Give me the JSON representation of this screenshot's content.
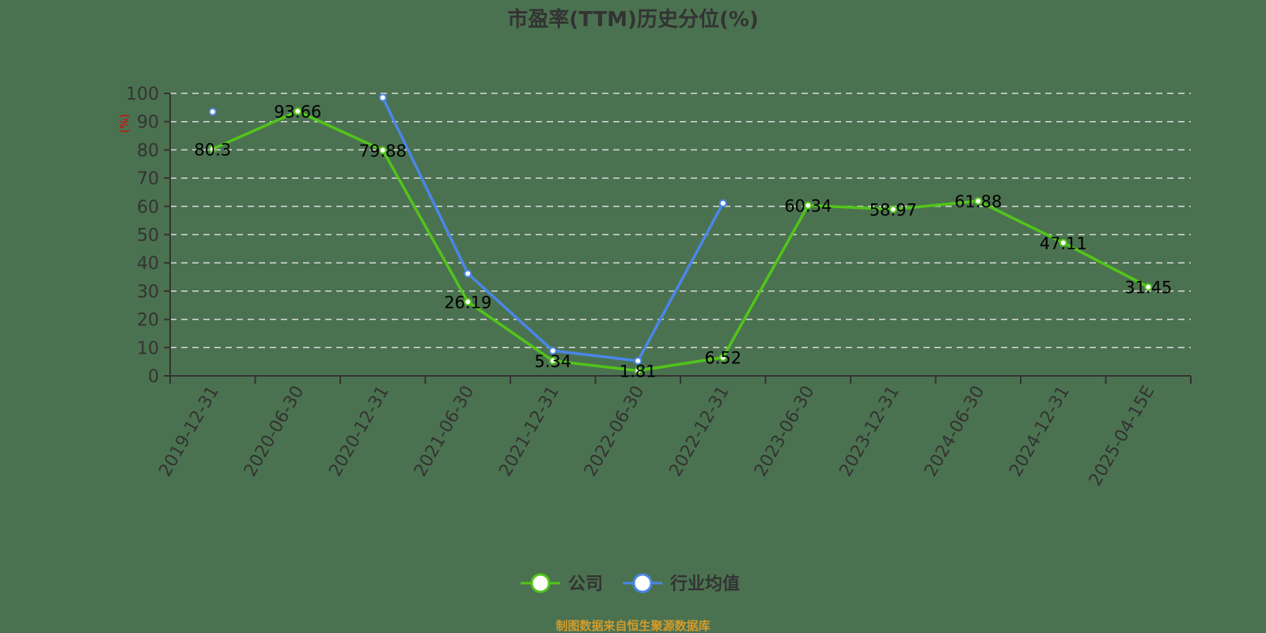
{
  "chart_data": {
    "type": "line",
    "title": "市盈率(TTM)历史分位(%)",
    "xlabel": "",
    "ylabel": "(%)",
    "ylim": [
      0,
      100
    ],
    "yticks": [
      0,
      10,
      20,
      30,
      40,
      50,
      60,
      70,
      80,
      90,
      100
    ],
    "grid": true,
    "legend_position": "bottom",
    "categories": [
      "2019-12-31",
      "2020-06-30",
      "2020-12-31",
      "2021-06-30",
      "2021-12-31",
      "2022-06-30",
      "2022-12-31",
      "2023-06-30",
      "2023-12-31",
      "2024-06-30",
      "2024-12-31",
      "2025-04-15E"
    ],
    "series": [
      {
        "name": "公司",
        "color": "#52c41a",
        "labeled": true,
        "values": [
          80.3,
          93.66,
          79.88,
          26.19,
          5.34,
          1.81,
          6.52,
          60.34,
          58.97,
          61.88,
          47.11,
          31.45
        ],
        "labels": [
          "80.3",
          "93.66",
          "79.88",
          "26.19",
          "5.34",
          "1.81",
          "6.52",
          "60.34",
          "58.97",
          "61.88",
          "47.11",
          "31.45"
        ]
      },
      {
        "name": "行业均值",
        "color": "#4a86e8",
        "labeled": false,
        "values": [
          93.5,
          null,
          98.5,
          36.2,
          8.9,
          5.3,
          61.1,
          null,
          null,
          null,
          null,
          null
        ]
      }
    ],
    "source": "制图数据来自恒生聚源数据库"
  }
}
